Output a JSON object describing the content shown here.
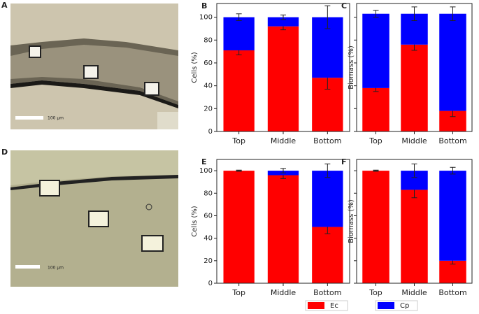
{
  "images": [
    {
      "panel": "A",
      "scale_bar": "100 µm"
    },
    {
      "panel": "D",
      "scale_bar": "100 µm"
    }
  ],
  "chart_data": [
    {
      "type": "bar",
      "stacked": true,
      "panel": "B",
      "ylabel": "Cells (%)",
      "categories": [
        "Top",
        "Middle",
        "Bottom"
      ],
      "series": [
        {
          "name": "Ec",
          "color": "#ff0000",
          "values": [
            71,
            92,
            47
          ],
          "errors": [
            4,
            3,
            10
          ]
        },
        {
          "name": "Cp",
          "color": "#0000ff",
          "values": [
            29,
            8,
            53
          ],
          "errors": [
            3,
            2,
            10
          ]
        }
      ],
      "ylim": [
        0,
        112
      ],
      "yticks": [
        0,
        20,
        40,
        60,
        80,
        100
      ],
      "ytick_labels": true
    },
    {
      "type": "bar",
      "stacked": true,
      "panel": "C",
      "ylabel": "Biomass (%)",
      "categories": [
        "Top",
        "Middle",
        "Bottom"
      ],
      "series": [
        {
          "name": "Ec",
          "color": "#ff0000",
          "values": [
            38,
            76,
            18
          ],
          "errors": [
            3,
            5,
            5
          ]
        },
        {
          "name": "Cp",
          "color": "#0000ff",
          "values": [
            65,
            27,
            85
          ],
          "errors": [
            3,
            6,
            6
          ]
        }
      ],
      "ylim": [
        0,
        112
      ],
      "yticks": [
        0,
        20,
        40,
        60,
        80,
        100
      ],
      "ytick_labels": false
    },
    {
      "type": "bar",
      "stacked": true,
      "panel": "E",
      "ylabel": "Cells (%)",
      "categories": [
        "Top",
        "Middle",
        "Bottom"
      ],
      "series": [
        {
          "name": "Ec",
          "color": "#ff0000",
          "values": [
            100,
            96,
            50
          ],
          "errors": [
            0.5,
            3,
            6
          ]
        },
        {
          "name": "Cp",
          "color": "#0000ff",
          "values": [
            0,
            4,
            50
          ],
          "errors": [
            0,
            2,
            6
          ]
        }
      ],
      "ylim": [
        0,
        110
      ],
      "yticks": [
        0,
        20,
        40,
        60,
        80,
        100
      ],
      "ytick_labels": true
    },
    {
      "type": "bar",
      "stacked": true,
      "panel": "F",
      "ylabel": "Biomass (%)",
      "categories": [
        "Top",
        "Middle",
        "Bottom"
      ],
      "series": [
        {
          "name": "Ec",
          "color": "#ff0000",
          "values": [
            100,
            83,
            20
          ],
          "errors": [
            0.5,
            7,
            3
          ]
        },
        {
          "name": "Cp",
          "color": "#0000ff",
          "values": [
            0,
            17,
            80
          ],
          "errors": [
            0,
            6,
            3
          ]
        }
      ],
      "ylim": [
        0,
        110
      ],
      "yticks": [
        0,
        20,
        40,
        60,
        80,
        100
      ],
      "ytick_labels": false
    }
  ]
}
